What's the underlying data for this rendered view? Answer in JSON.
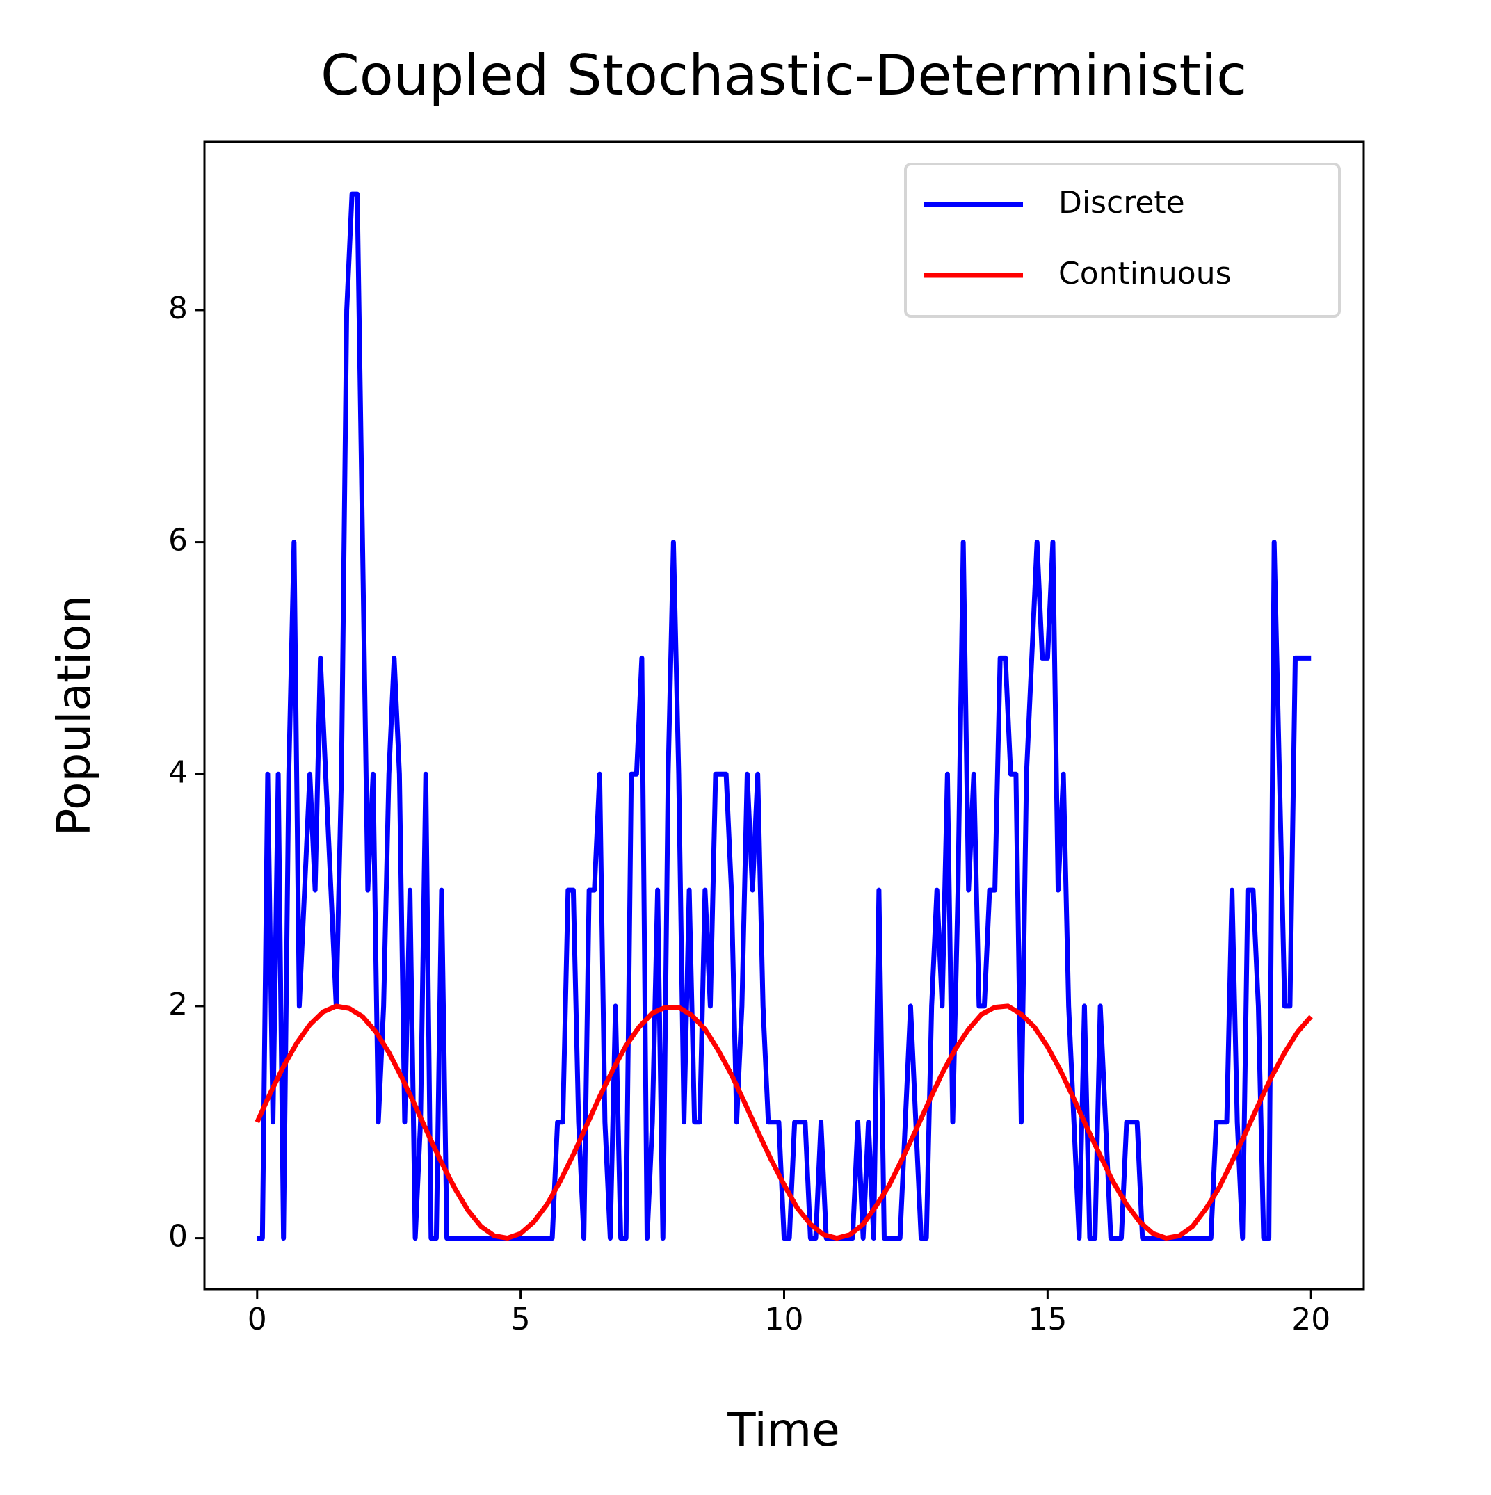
{
  "chart_data": {
    "type": "line",
    "title": "Coupled Stochastic-Deterministic",
    "xlabel": "Time",
    "ylabel": "Population",
    "xlim": [
      -1,
      21
    ],
    "ylim": [
      -0.44,
      9.45
    ],
    "xticks": [
      0,
      5,
      10,
      15,
      20
    ],
    "yticks": [
      0,
      2,
      4,
      6,
      8
    ],
    "grid": false,
    "legend": "upper right",
    "series": [
      {
        "name": "Discrete",
        "color": "#0000ff",
        "x": [
          0,
          0.1,
          0.2,
          0.3,
          0.4,
          0.5,
          0.6,
          0.7,
          0.8,
          0.9,
          1,
          1.1,
          1.2,
          1.3,
          1.4,
          1.5,
          1.6,
          1.7,
          1.8,
          1.9,
          2,
          2.1,
          2.2,
          2.3,
          2.4,
          2.5,
          2.6,
          2.7,
          2.8,
          2.9,
          3,
          3.1,
          3.2,
          3.3,
          3.4,
          3.5,
          3.6,
          3.7,
          3.8,
          3.9,
          4,
          4.1,
          4.2,
          4.3,
          4.4,
          4.5,
          4.6,
          4.7,
          4.8,
          4.9,
          5,
          5.1,
          5.2,
          5.3,
          5.4,
          5.5,
          5.6,
          5.7,
          5.8,
          5.9,
          6,
          6.1,
          6.2,
          6.3,
          6.4,
          6.5,
          6.6,
          6.7,
          6.8,
          6.9,
          7,
          7.1,
          7.2,
          7.3,
          7.4,
          7.5,
          7.6,
          7.7,
          7.8,
          7.9,
          8,
          8.1,
          8.2,
          8.3,
          8.4,
          8.5,
          8.6,
          8.7,
          8.8,
          8.9,
          9,
          9.1,
          9.2,
          9.3,
          9.4,
          9.5,
          9.6,
          9.7,
          9.8,
          9.9,
          10,
          10.1,
          10.2,
          10.3,
          10.4,
          10.5,
          10.6,
          10.7,
          10.8,
          10.9,
          11,
          11.1,
          11.2,
          11.3,
          11.4,
          11.5,
          11.6,
          11.7,
          11.8,
          11.9,
          12,
          12.1,
          12.2,
          12.3,
          12.4,
          12.5,
          12.6,
          12.7,
          12.8,
          12.9,
          13,
          13.1,
          13.2,
          13.3,
          13.4,
          13.5,
          13.6,
          13.7,
          13.8,
          13.9,
          14,
          14.1,
          14.2,
          14.3,
          14.4,
          14.5,
          14.6,
          14.7,
          14.8,
          14.9,
          15,
          15.1,
          15.2,
          15.3,
          15.4,
          15.5,
          15.6,
          15.7,
          15.8,
          15.9,
          16,
          16.1,
          16.2,
          16.3,
          16.4,
          16.5,
          16.6,
          16.7,
          16.8,
          16.9,
          17,
          17.1,
          17.2,
          17.3,
          17.4,
          17.5,
          17.6,
          17.7,
          17.8,
          17.9,
          18,
          18.1,
          18.2,
          18.3,
          18.4,
          18.5,
          18.6,
          18.7,
          18.8,
          18.9,
          19,
          19.1,
          19.2,
          19.3,
          19.4,
          19.5,
          19.6,
          19.7,
          19.8,
          19.9,
          20
        ],
        "values": [
          0,
          0,
          4,
          1,
          4,
          0,
          4,
          6,
          2,
          3,
          4,
          3,
          5,
          4,
          3,
          2,
          4,
          8,
          9,
          9,
          6,
          3,
          4,
          1,
          2,
          4,
          5,
          4,
          1,
          3,
          0,
          1,
          4,
          0,
          0,
          3,
          0,
          0,
          0,
          0,
          0,
          0,
          0,
          0,
          0,
          0,
          0,
          0,
          0,
          0,
          0,
          0,
          0,
          0,
          0,
          0,
          0,
          1,
          1,
          3,
          3,
          1,
          0,
          3,
          3,
          4,
          1,
          0,
          2,
          0,
          0,
          4,
          4,
          5,
          0,
          1,
          3,
          0,
          4,
          6,
          4,
          1,
          3,
          1,
          1,
          3,
          2,
          4,
          4,
          4,
          3,
          1,
          2,
          4,
          3,
          4,
          2,
          1,
          1,
          1,
          0,
          0,
          1,
          1,
          1,
          0,
          0,
          1,
          0,
          0,
          0,
          0,
          0,
          0,
          1,
          0,
          1,
          0,
          3,
          0,
          0,
          0,
          0,
          1,
          2,
          1,
          0,
          0,
          2,
          3,
          2,
          4,
          1,
          3,
          6,
          3,
          4,
          2,
          2,
          3,
          3,
          5,
          5,
          4,
          4,
          1,
          4,
          5,
          6,
          5,
          5,
          6,
          3,
          4,
          2,
          1,
          0,
          2,
          0,
          0,
          2,
          1,
          0,
          0,
          0,
          1,
          1,
          1,
          0,
          0,
          0,
          0,
          0,
          0,
          0,
          0,
          0,
          0,
          0,
          0,
          0,
          0,
          1,
          1,
          1,
          3,
          1,
          0,
          3,
          3,
          2,
          0,
          0,
          6,
          4,
          2,
          2,
          5,
          5,
          5,
          5
        ]
      },
      {
        "name": "Continuous",
        "color": "#ff0000",
        "x": [
          0,
          0.25,
          0.5,
          0.75,
          1,
          1.25,
          1.5,
          1.75,
          2,
          2.25,
          2.5,
          2.75,
          3,
          3.25,
          3.5,
          3.75,
          4,
          4.25,
          4.5,
          4.75,
          5,
          5.25,
          5.5,
          5.75,
          6,
          6.25,
          6.5,
          6.75,
          7,
          7.25,
          7.5,
          7.75,
          8,
          8.25,
          8.5,
          8.75,
          9,
          9.25,
          9.5,
          9.75,
          10,
          10.25,
          10.5,
          10.75,
          11,
          11.25,
          11.5,
          11.75,
          12,
          12.25,
          12.5,
          12.75,
          13,
          13.25,
          13.5,
          13.75,
          14,
          14.25,
          14.5,
          14.75,
          15,
          15.25,
          15.5,
          15.75,
          16,
          16.25,
          16.5,
          16.75,
          17,
          17.25,
          17.5,
          17.75,
          18,
          18.25,
          18.5,
          18.75,
          19,
          19.25,
          19.5,
          19.75,
          20
        ],
        "values": [
          1,
          1.25,
          1.48,
          1.68,
          1.84,
          1.95,
          2,
          1.98,
          1.91,
          1.78,
          1.6,
          1.38,
          1.14,
          0.89,
          0.65,
          0.43,
          0.24,
          0.1,
          0.02,
          0,
          0.04,
          0.14,
          0.29,
          0.49,
          0.72,
          0.97,
          1.22,
          1.45,
          1.66,
          1.82,
          1.94,
          1.99,
          1.99,
          1.92,
          1.8,
          1.62,
          1.41,
          1.17,
          0.92,
          0.68,
          0.46,
          0.26,
          0.12,
          0.03,
          0,
          0.03,
          0.12,
          0.28,
          0.46,
          0.69,
          0.93,
          1.18,
          1.42,
          1.63,
          1.8,
          1.93,
          1.99,
          2,
          1.93,
          1.82,
          1.65,
          1.44,
          1.2,
          0.95,
          0.71,
          0.48,
          0.29,
          0.14,
          0.04,
          0,
          0.02,
          0.1,
          0.25,
          0.43,
          0.66,
          0.9,
          1.15,
          1.39,
          1.6,
          1.78,
          1.91
        ]
      }
    ]
  }
}
